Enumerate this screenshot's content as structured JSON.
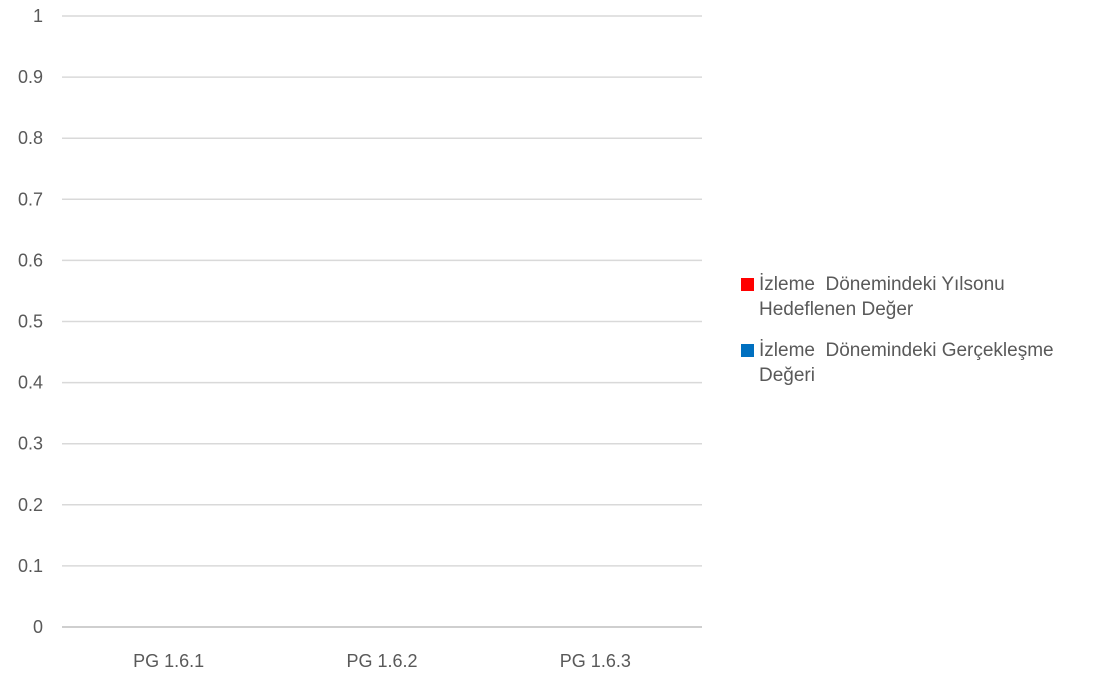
{
  "chart_data": {
    "type": "bar",
    "categories": [
      "PG 1.6.1",
      "PG 1.6.2",
      "PG 1.6.3"
    ],
    "series": [
      {
        "name": "İzleme  Dönemindeki Yılsonu Hedeflenen Değer",
        "color": "#ff0000",
        "values": [
          0,
          0,
          0
        ]
      },
      {
        "name": "İzleme  Dönemindeki Gerçekleşme Değeri",
        "color": "#0070c0",
        "values": [
          0,
          0,
          0
        ]
      }
    ],
    "y_ticks": [
      "0",
      "0.1",
      "0.2",
      "0.3",
      "0.4",
      "0.5",
      "0.6",
      "0.7",
      "0.8",
      "0.9",
      "1"
    ],
    "ylim": [
      0,
      1
    ],
    "grid": true,
    "legend_position": "right"
  }
}
